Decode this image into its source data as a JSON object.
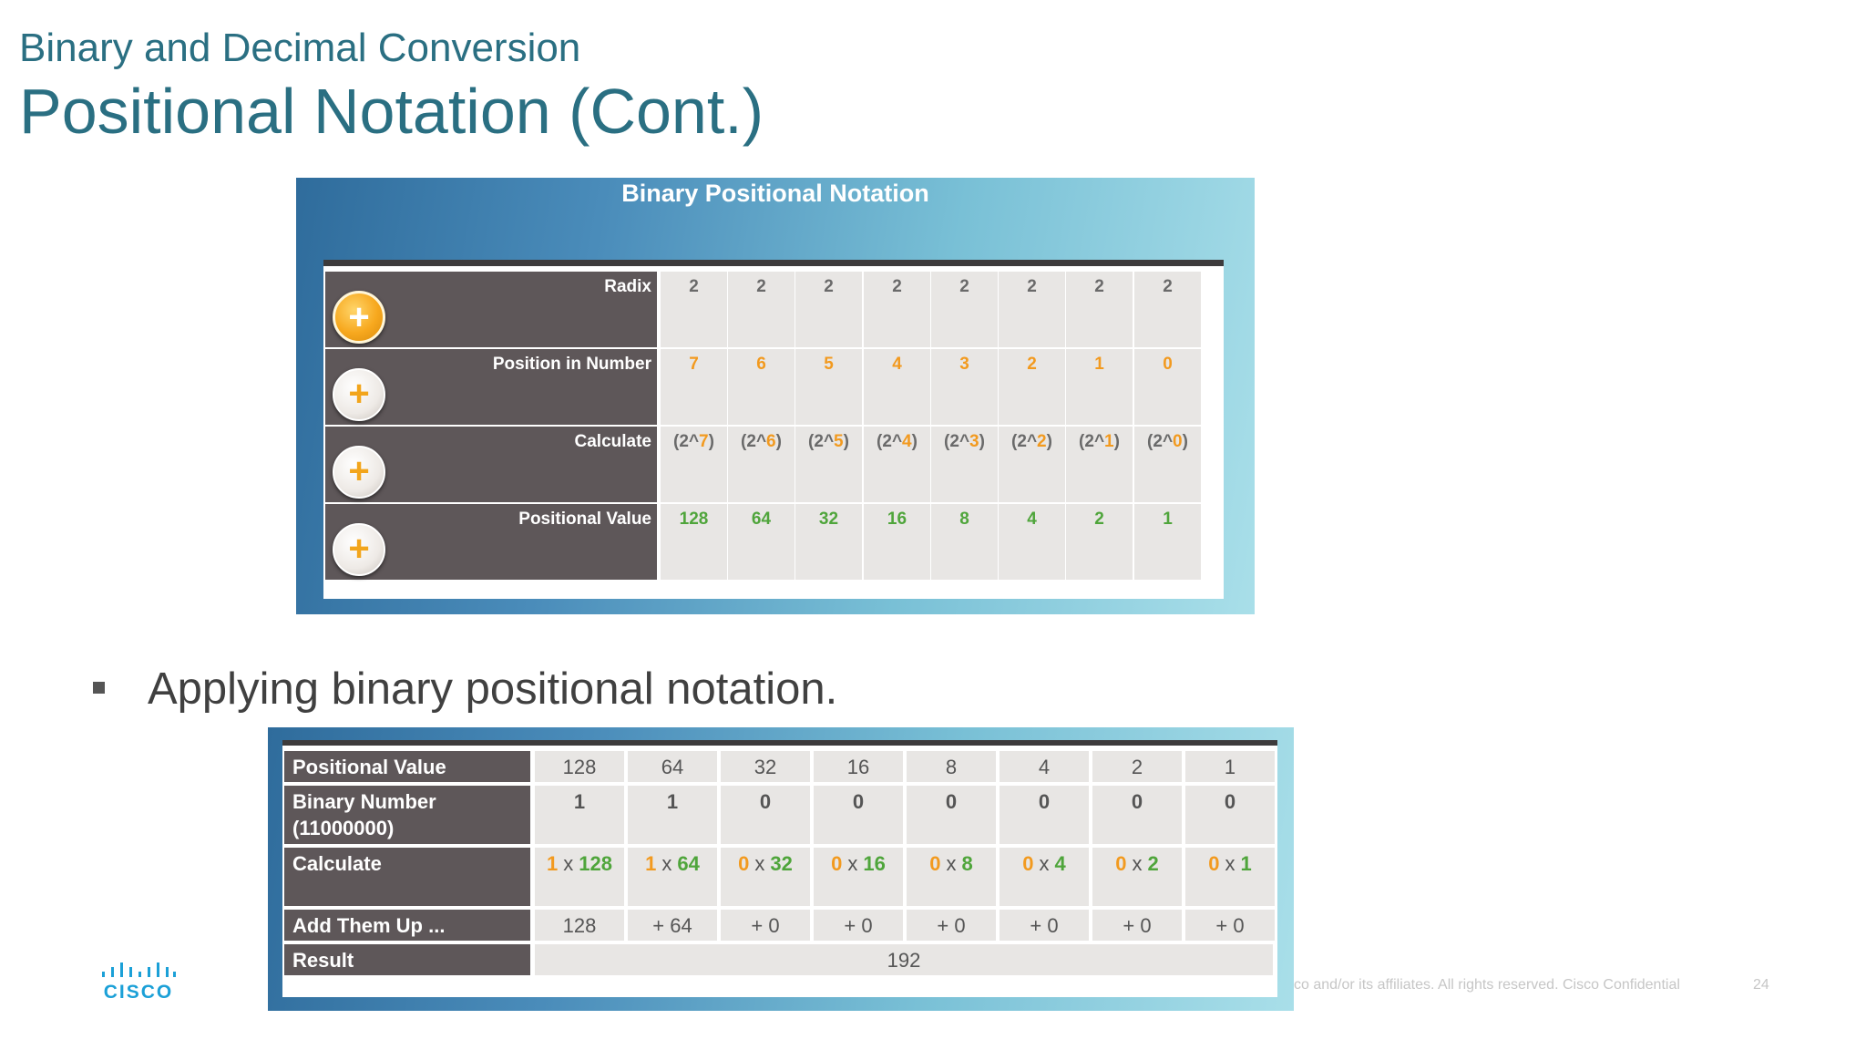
{
  "slide": {
    "supertitle": "Binary and Decimal Conversion",
    "title": "Positional Notation (Cont.)",
    "bullet": "Applying binary positional notation."
  },
  "figure1": {
    "title": "Binary Positional Notation",
    "rows": [
      {
        "label": "Radix",
        "color": "gray",
        "cells": [
          "2",
          "2",
          "2",
          "2",
          "2",
          "2",
          "2",
          "2"
        ]
      },
      {
        "label": "Position in Number",
        "color": "orange",
        "cells": [
          "7",
          "6",
          "5",
          "4",
          "3",
          "2",
          "1",
          "0"
        ]
      },
      {
        "label": "Calculate",
        "color": "mixed",
        "base": [
          "(2^",
          "(2^",
          "(2^",
          "(2^",
          "(2^",
          "(2^",
          "(2^",
          "(2^"
        ],
        "exp": [
          "7",
          "6",
          "5",
          "4",
          "3",
          "2",
          "1",
          "0"
        ],
        "close": ")"
      },
      {
        "label": "Positional Value",
        "color": "green",
        "cells": [
          "128",
          "64",
          "32",
          "16",
          "8",
          "4",
          "2",
          "1"
        ]
      }
    ]
  },
  "figure2": {
    "labels": {
      "positional_value": "Positional Value",
      "binary_number": "Binary Number",
      "binary_number_sub": "(11000000)",
      "calculate": "Calculate",
      "add_them_up": "Add Them Up ...",
      "result": "Result"
    },
    "positional_values": [
      "128",
      "64",
      "32",
      "16",
      "8",
      "4",
      "2",
      "1"
    ],
    "binary_digits": [
      "1",
      "1",
      "0",
      "0",
      "0",
      "0",
      "0",
      "0"
    ],
    "calc_times": "x",
    "calc_values": [
      "128",
      "64",
      "32",
      "16",
      "8",
      "4",
      "2",
      "1"
    ],
    "add_values": [
      "128",
      "+ 64",
      "+ 0",
      "+ 0",
      "+ 0",
      "+ 0",
      "+ 0",
      "+ 0"
    ],
    "result": "192"
  },
  "footer": {
    "logo_text": "CISCO",
    "copyright": "co and/or its affiliates. All rights reserved.   Cisco Confidential",
    "page_number": "24"
  },
  "colors": {
    "title": "#2a6f82",
    "orange": "#f29a1f",
    "green": "#4fa53b",
    "cisco_blue": "#1ba0d7"
  }
}
